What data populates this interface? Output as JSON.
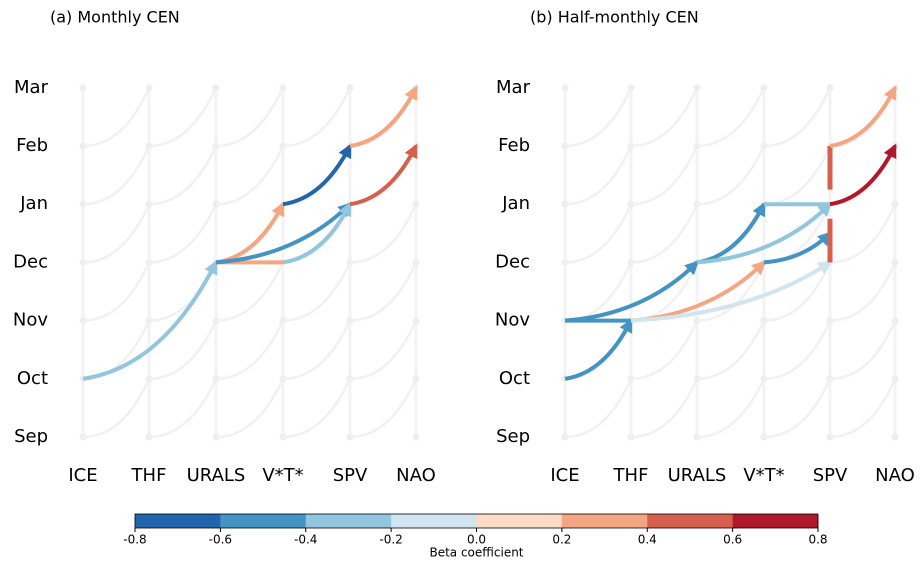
{
  "panels": [
    {
      "title": "(a) Monthly CEN",
      "months": [
        "Sep",
        "Oct",
        "Nov",
        "Dec",
        "Jan",
        "Feb",
        "Mar"
      ],
      "variables": [
        "ICE",
        "THF",
        "URALS",
        "V*T*",
        "SPV",
        "NAO"
      ],
      "edges": [
        {
          "from": [
            "ICE",
            1
          ],
          "to": [
            "URALS",
            3
          ],
          "beta": -0.3
        },
        {
          "from": [
            "URALS",
            3
          ],
          "to": [
            "V*T*",
            3
          ],
          "beta": 0.3
        },
        {
          "from": [
            "URALS",
            3
          ],
          "to": [
            "V*T*",
            4
          ],
          "beta": 0.3
        },
        {
          "from": [
            "URALS",
            3
          ],
          "to": [
            "SPV",
            4
          ],
          "beta": -0.5
        },
        {
          "from": [
            "V*T*",
            3
          ],
          "to": [
            "SPV",
            4
          ],
          "beta": -0.3
        },
        {
          "from": [
            "V*T*",
            4
          ],
          "to": [
            "SPV",
            5
          ],
          "beta": -0.7
        },
        {
          "from": [
            "SPV",
            4
          ],
          "to": [
            "NAO",
            5
          ],
          "beta": 0.5
        },
        {
          "from": [
            "SPV",
            5
          ],
          "to": [
            "NAO",
            6
          ],
          "beta": 0.3
        }
      ]
    },
    {
      "title": "(b) Half-monthly CEN",
      "months": [
        "Sep",
        "Oct",
        "Nov",
        "Dec",
        "Jan",
        "Feb",
        "Mar"
      ],
      "variables": [
        "ICE",
        "THF",
        "URALS",
        "V*T*",
        "SPV",
        "NAO"
      ],
      "edges": [
        {
          "from": [
            "ICE",
            1
          ],
          "to": [
            "THF",
            2
          ],
          "beta": -0.5
        },
        {
          "from": [
            "ICE",
            2
          ],
          "to": [
            "THF",
            2
          ],
          "beta": -0.5
        },
        {
          "from": [
            "ICE",
            2
          ],
          "to": [
            "URALS",
            3
          ],
          "beta": -0.5
        },
        {
          "from": [
            "URALS",
            3
          ],
          "to": [
            "V*T*",
            4
          ],
          "beta": -0.5
        },
        {
          "from": [
            "URALS",
            3
          ],
          "to": [
            "SPV",
            4
          ],
          "beta": -0.3
        },
        {
          "from": [
            "V*T*",
            4
          ],
          "to": [
            "SPV",
            4
          ],
          "beta": -0.3
        },
        {
          "from": [
            "THF",
            2
          ],
          "to": [
            "V*T*",
            3
          ],
          "beta": 0.3
        },
        {
          "from": [
            "THF",
            2
          ],
          "to": [
            "SPV",
            3
          ],
          "beta": -0.1
        },
        {
          "from": [
            "V*T*",
            3
          ],
          "to": [
            "SPV",
            3.5
          ],
          "beta": -0.5
        },
        {
          "from": [
            "SPV",
            3
          ],
          "to": [
            "SPV",
            3.75
          ],
          "beta": 0.5
        },
        {
          "from": [
            "SPV",
            4.25
          ],
          "to": [
            "SPV",
            5
          ],
          "beta": 0.5
        },
        {
          "from": [
            "SPV",
            4
          ],
          "to": [
            "NAO",
            5
          ],
          "beta": 0.7
        },
        {
          "from": [
            "SPV",
            5
          ],
          "to": [
            "NAO",
            6
          ],
          "beta": 0.3
        }
      ]
    }
  ],
  "colorbar": {
    "label": "Beta coefficient",
    "lim": [
      -0.8,
      0.8
    ],
    "ticks": [
      -0.8,
      -0.6,
      -0.4,
      -0.2,
      {
        "value": 0,
        "label": "0.0"
      },
      0.2,
      0.4,
      0.6,
      0.8
    ],
    "colors": [
      "#2166ac",
      "#4393c3",
      "#92c5de",
      "#d1e5f0",
      "#fddbc7",
      "#f4a582",
      "#d6604d",
      "#b2182b"
    ]
  }
}
